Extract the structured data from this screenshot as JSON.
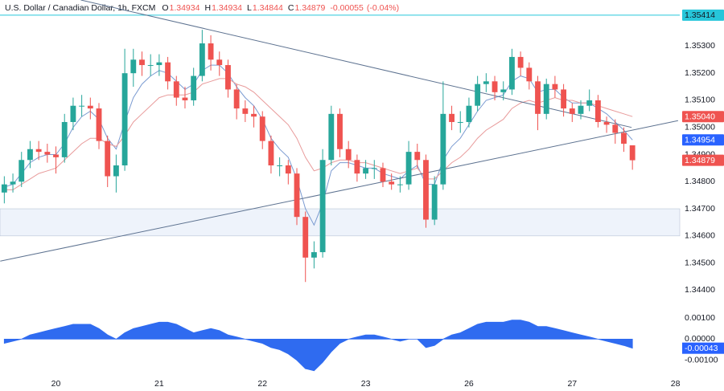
{
  "chart_data": {
    "type": "candlestick",
    "header": {
      "symbol": "U.S. Dollar / Canadian Dollar, 1h, FXCM",
      "fields": [
        {
          "label": "O",
          "value": 1.34934
        },
        {
          "label": "H",
          "value": 1.34934
        },
        {
          "label": "L",
          "value": 1.34844
        },
        {
          "label": "C",
          "value": 1.34879
        }
      ],
      "change": -0.00055,
      "change_pct": "(-0.04%)"
    },
    "up_color": "#26a69a",
    "down_color": "#ef5350",
    "x": [
      0,
      1,
      2,
      3,
      4,
      5,
      6,
      7,
      8,
      9,
      10,
      11,
      12,
      13,
      14,
      15,
      16,
      17,
      18,
      19,
      20,
      21,
      22,
      23,
      24,
      25,
      26,
      27,
      28,
      29,
      30,
      31,
      32,
      33,
      34,
      35,
      36,
      37,
      38,
      39,
      40,
      41,
      42,
      43,
      44,
      45,
      46,
      47,
      48,
      49,
      50,
      51,
      52,
      53,
      54,
      55,
      56,
      57,
      58,
      59,
      60,
      61,
      62,
      63,
      64,
      65,
      66,
      67,
      68,
      69,
      70,
      71,
      72,
      73
    ],
    "open": [
      1.3476,
      1.3479,
      1.348,
      1.3488,
      1.3492,
      1.3491,
      1.349,
      1.3489,
      1.3502,
      1.3508,
      1.3508,
      1.3507,
      1.3495,
      1.3482,
      1.3486,
      1.352,
      1.3525,
      1.3523,
      1.3523,
      1.3524,
      1.3517,
      1.3511,
      1.351,
      1.3519,
      1.3531,
      1.3525,
      1.3523,
      1.3514,
      1.3507,
      1.3505,
      1.3504,
      1.3495,
      1.3486,
      1.3486,
      1.3483,
      1.3467,
      1.3452,
      1.3454,
      1.3488,
      1.3505,
      1.3492,
      1.3488,
      1.3483,
      1.3485,
      1.3485,
      1.348,
      1.3479,
      1.3479,
      1.3491,
      1.3488,
      1.3466,
      1.3479,
      1.3505,
      1.3502,
      1.3502,
      1.3508,
      1.3516,
      1.3517,
      1.3513,
      1.3514,
      1.3526,
      1.3522,
      1.3517,
      1.3505,
      1.3516,
      1.3514,
      1.3507,
      1.3505,
      1.3508,
      1.351,
      1.3502,
      1.3501,
      1.3498,
      1.34934
    ],
    "high": [
      1.3482,
      1.3483,
      1.3491,
      1.3495,
      1.3495,
      1.3494,
      1.3493,
      1.3505,
      1.3511,
      1.3512,
      1.3511,
      1.3509,
      1.3497,
      1.349,
      1.3529,
      1.3529,
      1.3528,
      1.3527,
      1.3527,
      1.3526,
      1.3519,
      1.3515,
      1.3522,
      1.3536,
      1.3534,
      1.3528,
      1.3525,
      1.3516,
      1.351,
      1.3508,
      1.3506,
      1.3497,
      1.3489,
      1.3488,
      1.3485,
      1.3469,
      1.3458,
      1.3492,
      1.3508,
      1.3507,
      1.3495,
      1.349,
      1.3488,
      1.3488,
      1.3487,
      1.3483,
      1.3482,
      1.3495,
      1.3494,
      1.349,
      1.3482,
      1.3517,
      1.3508,
      1.3506,
      1.3511,
      1.3519,
      1.352,
      1.3519,
      1.3517,
      1.3529,
      1.3528,
      1.3524,
      1.3519,
      1.3518,
      1.3519,
      1.3516,
      1.3509,
      1.351,
      1.3514,
      1.3512,
      1.3504,
      1.3503,
      1.35,
      1.34934
    ],
    "low": [
      1.3472,
      1.3476,
      1.3478,
      1.3485,
      1.3488,
      1.3487,
      1.3483,
      1.3487,
      1.3499,
      1.3504,
      1.3503,
      1.3492,
      1.3478,
      1.3476,
      1.3484,
      1.3515,
      1.3519,
      1.3519,
      1.3519,
      1.3514,
      1.3508,
      1.3507,
      1.3508,
      1.3517,
      1.3521,
      1.3519,
      1.3511,
      1.3503,
      1.3502,
      1.35,
      1.3492,
      1.3483,
      1.3482,
      1.3479,
      1.3464,
      1.3443,
      1.3448,
      1.3452,
      1.3486,
      1.3489,
      1.3485,
      1.348,
      1.3481,
      1.3481,
      1.3478,
      1.3477,
      1.3476,
      1.3477,
      1.3485,
      1.3463,
      1.3464,
      1.3477,
      1.3499,
      1.3498,
      1.35,
      1.3506,
      1.3513,
      1.351,
      1.351,
      1.3512,
      1.3519,
      1.3514,
      1.3499,
      1.3503,
      1.3511,
      1.3504,
      1.3502,
      1.3503,
      1.3506,
      1.35,
      1.3498,
      1.3494,
      1.3491,
      1.34844
    ],
    "close": [
      1.3479,
      1.348,
      1.3488,
      1.3492,
      1.3491,
      1.349,
      1.3489,
      1.3502,
      1.3508,
      1.3508,
      1.3507,
      1.3495,
      1.3482,
      1.3486,
      1.352,
      1.3525,
      1.3523,
      1.3523,
      1.3524,
      1.3517,
      1.3511,
      1.351,
      1.3519,
      1.3531,
      1.3525,
      1.3523,
      1.3514,
      1.3507,
      1.3505,
      1.3504,
      1.3495,
      1.3486,
      1.3486,
      1.3483,
      1.3467,
      1.3452,
      1.3454,
      1.3488,
      1.3505,
      1.3492,
      1.3488,
      1.3483,
      1.3485,
      1.3485,
      1.348,
      1.3479,
      1.3479,
      1.3491,
      1.3488,
      1.3466,
      1.3479,
      1.3505,
      1.3502,
      1.3502,
      1.3508,
      1.3516,
      1.3517,
      1.3513,
      1.3514,
      1.3526,
      1.3522,
      1.3517,
      1.3505,
      1.3516,
      1.3514,
      1.3507,
      1.3505,
      1.3508,
      1.351,
      1.3502,
      1.3501,
      1.3498,
      1.3494,
      1.34879
    ],
    "close_label_color": "#ef5350",
    "moving_averages": [
      {
        "color": "#7b9bd1",
        "last_label": "1.34954",
        "label_color": "#2962ff",
        "values": [
          1.3478,
          1.3479,
          1.3483,
          1.3487,
          1.3489,
          1.349,
          1.349,
          1.3494,
          1.35,
          1.3504,
          1.3506,
          1.3503,
          1.3496,
          1.3492,
          1.3502,
          1.3511,
          1.3516,
          1.3519,
          1.3521,
          1.352,
          1.3517,
          1.3514,
          1.3516,
          1.3521,
          1.3523,
          1.3523,
          1.352,
          1.3515,
          1.3511,
          1.3508,
          1.3503,
          1.3496,
          1.3492,
          1.3489,
          1.3481,
          1.347,
          1.3464,
          1.3472,
          1.3484,
          1.3487,
          1.3487,
          1.3486,
          1.3485,
          1.3485,
          1.3483,
          1.3482,
          1.3481,
          1.3484,
          1.3486,
          1.3479,
          1.3479,
          1.3488,
          1.3493,
          1.3496,
          1.3501,
          1.3506,
          1.351,
          1.3511,
          1.3512,
          1.3517,
          1.3519,
          1.3518,
          1.3513,
          1.3514,
          1.3514,
          1.3511,
          1.3509,
          1.3509,
          1.3509,
          1.3507,
          1.3505,
          1.3502,
          1.3499,
          1.34954
        ]
      },
      {
        "color": "#e89a9a",
        "last_label": "1.35040",
        "label_color": "#ef5350",
        "values": [
          1.3477,
          1.3477,
          1.3479,
          1.3481,
          1.3483,
          1.3484,
          1.3485,
          1.3488,
          1.3491,
          1.3494,
          1.3496,
          1.3496,
          1.3494,
          1.3493,
          1.3497,
          1.3502,
          1.3505,
          1.3508,
          1.3511,
          1.3512,
          1.3512,
          1.3512,
          1.3513,
          1.3516,
          1.3517,
          1.3518,
          1.3518,
          1.3516,
          1.3515,
          1.3513,
          1.351,
          1.3507,
          1.3504,
          1.3501,
          1.3496,
          1.3489,
          1.3484,
          1.3485,
          1.3487,
          1.3488,
          1.3488,
          1.3487,
          1.3487,
          1.3486,
          1.3485,
          1.3484,
          1.3483,
          1.3484,
          1.3485,
          1.3481,
          1.3481,
          1.3484,
          1.3487,
          1.3489,
          1.3492,
          1.3496,
          1.3499,
          1.3501,
          1.3503,
          1.3507,
          1.3509,
          1.351,
          1.3509,
          1.351,
          1.3511,
          1.351,
          1.351,
          1.3509,
          1.3509,
          1.3508,
          1.3507,
          1.3506,
          1.3505,
          1.3504
        ]
      }
    ],
    "trendlines": [
      {
        "color": "#5d7290",
        "x": [
          8.9,
          72.9
        ],
        "y": [
          1.3547,
          1.35
        ]
      },
      {
        "color": "#5d7290",
        "x": [
          -0.47,
          78.3
        ],
        "y": [
          1.34507,
          1.35025
        ]
      }
    ],
    "hline": {
      "value": 1.35414,
      "color": "#26c6da"
    },
    "zone": {
      "from": 1.346,
      "to": 1.347,
      "color": "#eef3fb",
      "edge": "#b8c4d6"
    },
    "xlim": [
      -0.5,
      78.5
    ],
    "xticks": [
      {
        "value": 6,
        "label": "20"
      },
      {
        "value": 18,
        "label": "21"
      },
      {
        "value": 30,
        "label": "22"
      },
      {
        "value": 42,
        "label": "23"
      },
      {
        "value": 54,
        "label": "26"
      },
      {
        "value": 66,
        "label": "27"
      },
      {
        "value": 78,
        "label": "28"
      }
    ],
    "ylim": [
      1.3433,
      1.3547
    ],
    "yticks": [
      {
        "value": 1.344,
        "label": "1.34400"
      },
      {
        "value": 1.345,
        "label": "1.34500"
      },
      {
        "value": 1.346,
        "label": "1.34600"
      },
      {
        "value": 1.347,
        "label": "1.34700"
      },
      {
        "value": 1.348,
        "label": "1.34800"
      },
      {
        "value": 1.349,
        "label": "1.34900"
      },
      {
        "value": 1.35,
        "label": "1.35000"
      },
      {
        "value": 1.351,
        "label": "1.35100"
      },
      {
        "value": 1.352,
        "label": "1.35200"
      },
      {
        "value": 1.353,
        "label": "1.35300"
      }
    ],
    "oscillator": {
      "type": "area",
      "color": "#2f6bf0",
      "label_color": "#2962ff",
      "ylim": [
        -0.00162,
        0.00142
      ],
      "yticks": [
        {
          "value": 0.001,
          "label": "0.00100"
        },
        {
          "value": 0,
          "label": "0.00000"
        },
        {
          "value": -0.001,
          "label": "-0.00100"
        }
      ],
      "values": [
        -0.0002,
        -0.0001,
        0,
        0.0002,
        0.0003,
        0.0004,
        0.0005,
        0.0006,
        0.0007,
        0.0007,
        0.0007,
        0.0005,
        0.0002,
        0,
        0.0003,
        0.0005,
        0.0006,
        0.0007,
        0.0008,
        0.0008,
        0.0007,
        0.0005,
        0.0003,
        0.0004,
        0.0005,
        0.0004,
        0.0002,
        0.0001,
        0,
        -0.0001,
        -0.0002,
        -0.0004,
        -0.0005,
        -0.0007,
        -0.001,
        -0.0014,
        -0.0015,
        -0.0011,
        -0.0006,
        -0.0002,
        0,
        0.0001,
        0.0002,
        0.0002,
        0.0001,
        0,
        -0.0001,
        0,
        0,
        -0.0004,
        -0.0003,
        0,
        0.0002,
        0.0003,
        0.0005,
        0.0007,
        0.0008,
        0.0008,
        0.0008,
        0.0009,
        0.0009,
        0.0008,
        0.0006,
        0.0006,
        0.0005,
        0.0004,
        0.0003,
        0.0002,
        0.0001,
        0,
        -0.0001,
        -0.0002,
        -0.0003,
        -0.00043
      ]
    }
  }
}
